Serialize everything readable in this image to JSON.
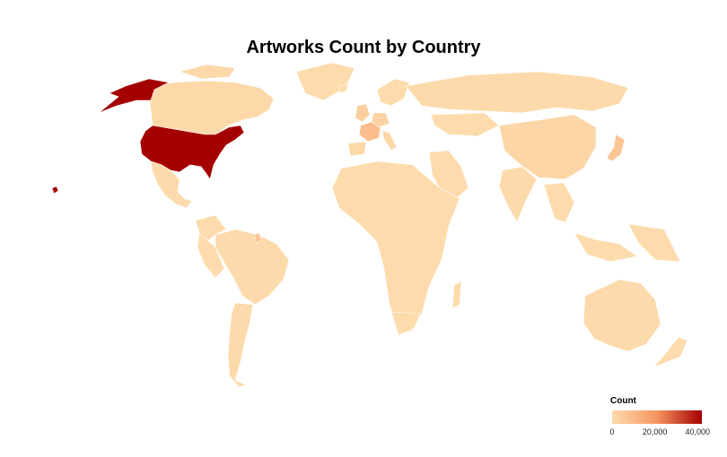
{
  "chart_data": {
    "type": "choropleth",
    "title": "Artworks Count by Country",
    "legend": {
      "title": "Count",
      "placement": "bottom-right",
      "range": [
        0,
        42000
      ],
      "ticks": [
        0,
        20000,
        40000
      ],
      "tick_labels": [
        "0",
        "20,000",
        "40,000"
      ],
      "color_low": "#fddbac",
      "color_mid": "#f69560",
      "color_high": "#a50000"
    },
    "regions": [
      {
        "name": "United States",
        "value": 42000
      },
      {
        "name": "France",
        "value": 9000
      },
      {
        "name": "Japan",
        "value": 6500
      },
      {
        "name": "French Guiana",
        "value": 7000
      },
      {
        "name": "United Kingdom",
        "value": 4000
      },
      {
        "name": "Germany",
        "value": 2500
      },
      {
        "name": "China",
        "value": 1500
      },
      {
        "name": "Italy",
        "value": 1200
      },
      {
        "name": "Canada",
        "value": 600
      },
      {
        "name": "Russia",
        "value": 300
      },
      {
        "name": "Brazil",
        "value": 300
      },
      {
        "name": "Australia",
        "value": 300
      },
      {
        "name": "India",
        "value": 200
      },
      {
        "name": "Mexico",
        "value": 400
      },
      {
        "name": "Argentina",
        "value": 200
      },
      {
        "name": "Spain",
        "value": 700
      },
      {
        "name": "South Africa",
        "value": 100
      }
    ]
  }
}
